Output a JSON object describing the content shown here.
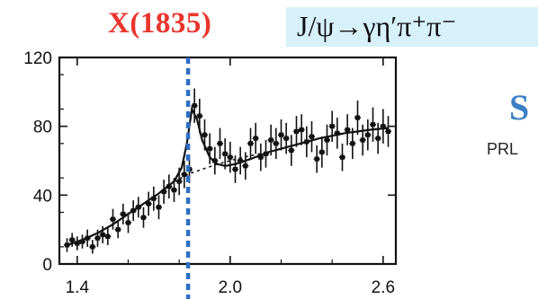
{
  "header": {
    "resonance": "X(1835)",
    "decay": "J/ψ→γη′π⁺π⁻",
    "cut_heading": "S",
    "cut_reference": "PRL"
  },
  "colors": {
    "resonance": "#e8352c",
    "decay_box": "#d7f1fb",
    "marker_line": "#2e6fc4",
    "heading_cut": "#3b7fc4"
  },
  "chart_data": {
    "type": "scatter",
    "title": "",
    "xlabel": "",
    "ylabel": "",
    "xlim": [
      1.33,
      2.65
    ],
    "ylim": [
      0,
      120
    ],
    "x_ticks": [
      1.4,
      2.0,
      2.6
    ],
    "x_tick_labels": [
      "1.4",
      "2.0",
      "2.6"
    ],
    "y_ticks": [
      0,
      40,
      80,
      120
    ],
    "y_tick_labels": [
      "0",
      "40",
      "80",
      "120"
    ],
    "grid": false,
    "legend": "none",
    "marker_line_x": 1.835,
    "series": [
      {
        "kind": "data_points_with_errors",
        "x": [
          1.36,
          1.38,
          1.4,
          1.42,
          1.44,
          1.46,
          1.48,
          1.5,
          1.52,
          1.54,
          1.56,
          1.58,
          1.6,
          1.62,
          1.64,
          1.66,
          1.68,
          1.7,
          1.72,
          1.74,
          1.76,
          1.78,
          1.8,
          1.82,
          1.84,
          1.86,
          1.88,
          1.9,
          1.92,
          1.94,
          1.96,
          1.98,
          2.0,
          2.02,
          2.04,
          2.06,
          2.08,
          2.1,
          2.12,
          2.14,
          2.16,
          2.18,
          2.2,
          2.22,
          2.24,
          2.26,
          2.28,
          2.3,
          2.32,
          2.34,
          2.36,
          2.38,
          2.4,
          2.42,
          2.44,
          2.46,
          2.48,
          2.5,
          2.52,
          2.54,
          2.56,
          2.58,
          2.6,
          2.62
        ],
        "y": [
          11,
          14,
          12,
          13,
          15,
          10,
          15,
          17,
          16,
          26,
          20,
          29,
          24,
          31,
          33,
          27,
          35,
          38,
          33,
          42,
          45,
          43,
          48,
          52,
          55,
          92,
          86,
          75,
          67,
          60,
          70,
          64,
          62,
          55,
          60,
          57,
          70,
          73,
          62,
          64,
          72,
          70,
          75,
          73,
          66,
          77,
          78,
          71,
          74,
          61,
          65,
          72,
          80,
          76,
          62,
          78,
          70,
          85,
          72,
          75,
          81,
          73,
          80,
          77
        ],
        "err": [
          4,
          4,
          4,
          4,
          5,
          4,
          5,
          5,
          5,
          6,
          5,
          6,
          6,
          6,
          6,
          6,
          7,
          7,
          7,
          7,
          7,
          7,
          8,
          8,
          8,
          10,
          10,
          9,
          9,
          8,
          9,
          9,
          9,
          8,
          8,
          8,
          9,
          9,
          8,
          8,
          9,
          9,
          9,
          9,
          9,
          9,
          9,
          9,
          9,
          8,
          9,
          9,
          9,
          9,
          8,
          9,
          9,
          10,
          9,
          9,
          10,
          9,
          10,
          9
        ]
      },
      {
        "kind": "fit_total",
        "x": [
          1.36,
          1.42,
          1.48,
          1.54,
          1.6,
          1.66,
          1.72,
          1.78,
          1.81,
          1.83,
          1.85,
          1.87,
          1.89,
          1.92,
          1.95,
          1.98,
          2.02,
          2.08,
          2.15,
          2.25,
          2.35,
          2.45,
          2.55,
          2.62
        ],
        "y": [
          11,
          14,
          18,
          23,
          29,
          35,
          41,
          48,
          56,
          70,
          90,
          84,
          72,
          62,
          58,
          57,
          58,
          61,
          65,
          69,
          73,
          76,
          78,
          79
        ]
      },
      {
        "kind": "fit_background",
        "x": [
          1.78,
          1.85,
          1.95,
          2.05,
          2.15
        ],
        "y": [
          48,
          53,
          58,
          62,
          65
        ]
      }
    ]
  }
}
